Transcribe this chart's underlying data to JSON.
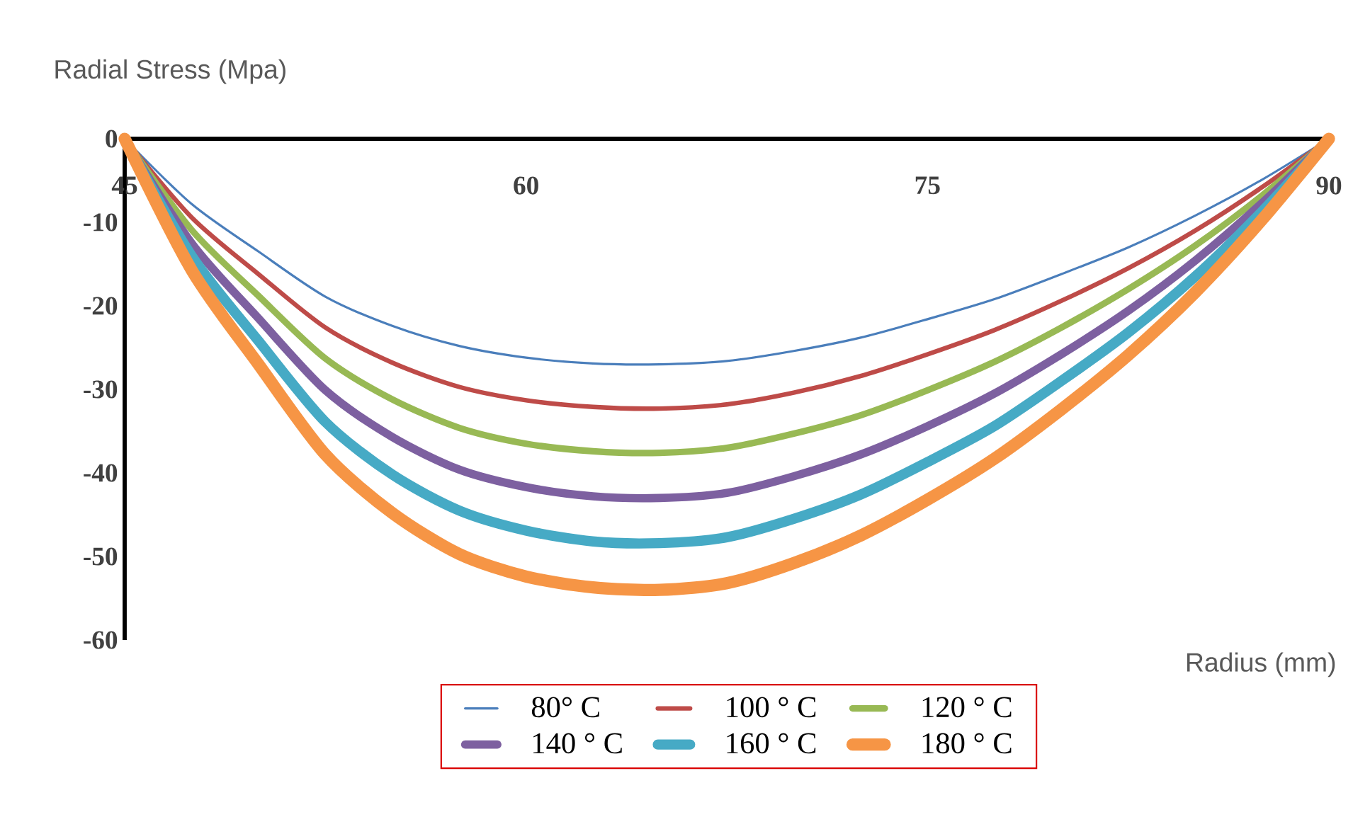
{
  "chart_data": {
    "type": "line",
    "xlabel": "Radius (mm)",
    "ylabel": "Radial Stress (Mpa)",
    "x": [
      45,
      47.5,
      50,
      52.5,
      55,
      57.5,
      60,
      62.5,
      65,
      67.5,
      70,
      72.5,
      75,
      77.5,
      80,
      82.5,
      85,
      87.5,
      90
    ],
    "xlim": [
      45,
      90
    ],
    "xticks": [
      45,
      60,
      75,
      90
    ],
    "ylim": [
      -60,
      0
    ],
    "yticks": [
      -60,
      -50,
      -40,
      -30,
      -20,
      -10,
      0
    ],
    "legend": "bottom",
    "marker": "none",
    "series": [
      {
        "name": "80° C",
        "color": "#4a7ebb",
        "values": [
          0,
          -7.8,
          -13.5,
          -18.9,
          -22.4,
          -24.8,
          -26.2,
          -26.9,
          -27,
          -26.6,
          -25.4,
          -23.8,
          -21.6,
          -19.2,
          -16.2,
          -13,
          -9.2,
          -4.9,
          0
        ]
      },
      {
        "name": "100 ° C",
        "color": "#be4b48",
        "values": [
          0,
          -9.4,
          -16.2,
          -22.6,
          -26.8,
          -29.7,
          -31.3,
          -32.1,
          -32.3,
          -31.8,
          -30.4,
          -28.4,
          -25.8,
          -22.9,
          -19.4,
          -15.5,
          -11,
          -5.8,
          0
        ]
      },
      {
        "name": "120 ° C",
        "color": "#98b954",
        "values": [
          0,
          -10.9,
          -18.8,
          -26.3,
          -31.2,
          -34.6,
          -36.5,
          -37.4,
          -37.6,
          -37,
          -35.3,
          -33.1,
          -30.1,
          -26.7,
          -22.6,
          -18,
          -12.8,
          -6.8,
          0
        ]
      },
      {
        "name": "140 ° C",
        "color": "#7d60a0",
        "values": [
          0,
          -12.5,
          -21.5,
          -30.1,
          -35.7,
          -39.6,
          -41.7,
          -42.8,
          -43,
          -42.4,
          -40.4,
          -37.8,
          -34.4,
          -30.5,
          -25.8,
          -20.6,
          -14.6,
          -7.7,
          0
        ]
      },
      {
        "name": "160 ° C",
        "color": "#46aac5",
        "values": [
          0,
          -14,
          -24.2,
          -33.9,
          -40.2,
          -44.5,
          -46.9,
          -48.2,
          -48.4,
          -47.7,
          -45.5,
          -42.6,
          -38.7,
          -34.4,
          -29,
          -23.2,
          -16.5,
          -8.7,
          0
        ]
      },
      {
        "name": "180 ° C",
        "color": "#f69545",
        "values": [
          0,
          -15.7,
          -27,
          -37.8,
          -44.8,
          -49.7,
          -52.4,
          -53.7,
          -54,
          -53.2,
          -50.8,
          -47.5,
          -43.2,
          -38.3,
          -32.4,
          -25.9,
          -18.4,
          -9.7,
          0
        ]
      }
    ]
  }
}
